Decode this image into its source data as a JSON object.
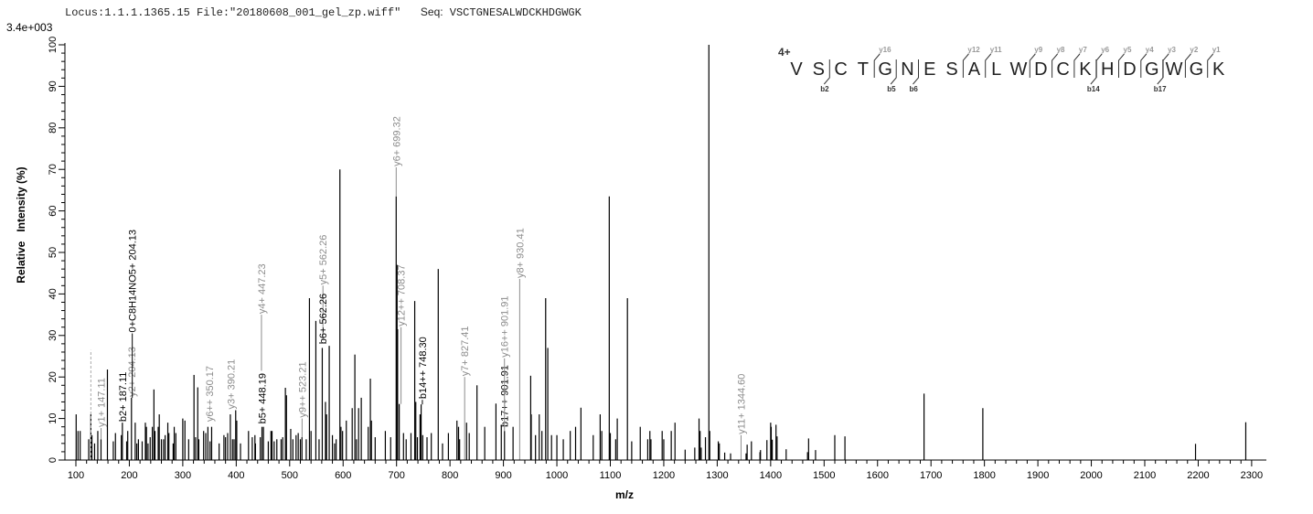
{
  "header": {
    "locus": "Locus:1.1.1.1365.15",
    "file": "File:\"20180608_001_gel_zp.wiff\"",
    "seq_label": "Seq:",
    "seq_value": "VSCTGNESALWDCKHDGWGK"
  },
  "chart_data": {
    "type": "bar",
    "subtype": "mass-spectrum",
    "base_peak_intensity": "3.4e+003",
    "xlabel": "m/z",
    "ylabel": "Relative   Intensity (%)",
    "xlim": [
      100,
      2320
    ],
    "ylim": [
      0,
      100
    ],
    "x_ticks": [
      "100",
      "200",
      "300",
      "400",
      "500",
      "600",
      "700",
      "800",
      "900",
      "1000",
      "1100",
      "1200",
      "1300",
      "1400",
      "1500",
      "1600",
      "1700",
      "1800",
      "1900",
      "2000",
      "2100",
      "2200",
      "2300"
    ],
    "y_ticks": [
      "0",
      "10",
      "20",
      "30",
      "40",
      "50",
      "60",
      "70",
      "80",
      "90",
      "100"
    ],
    "grid": false,
    "colors": {
      "peak": "#000000",
      "annotation_y": "#8c8c8c",
      "annotation_b": "#000000"
    },
    "peaks": [
      [
        100.5,
        11
      ],
      [
        104,
        7
      ],
      [
        108,
        7
      ],
      [
        124,
        5
      ],
      [
        128,
        11
      ],
      [
        130,
        6
      ],
      [
        135,
        4
      ],
      [
        141,
        7
      ],
      [
        147,
        5
      ],
      [
        159,
        21.8
      ],
      [
        170,
        4.5
      ],
      [
        174,
        6.5
      ],
      [
        185,
        6
      ],
      [
        187,
        9
      ],
      [
        195,
        4.5
      ],
      [
        197,
        7
      ],
      [
        204,
        15
      ],
      [
        211,
        9
      ],
      [
        214,
        4
      ],
      [
        217,
        5
      ],
      [
        224,
        4.5
      ],
      [
        230,
        9
      ],
      [
        232,
        8
      ],
      [
        235,
        4
      ],
      [
        239,
        5.5
      ],
      [
        243,
        8
      ],
      [
        246,
        17
      ],
      [
        248,
        7
      ],
      [
        254,
        8
      ],
      [
        256,
        11
      ],
      [
        260,
        5
      ],
      [
        264,
        5
      ],
      [
        267,
        6
      ],
      [
        272,
        9
      ],
      [
        274,
        6.5
      ],
      [
        282,
        4
      ],
      [
        284,
        8
      ],
      [
        287,
        6.5
      ],
      [
        300,
        10
      ],
      [
        304,
        9.5
      ],
      [
        311,
        5
      ],
      [
        321,
        20.5
      ],
      [
        324,
        5.5
      ],
      [
        328,
        17.5
      ],
      [
        330,
        5
      ],
      [
        339,
        7
      ],
      [
        343,
        6.5
      ],
      [
        347,
        8
      ],
      [
        351,
        4.5
      ],
      [
        354,
        8
      ],
      [
        368,
        4
      ],
      [
        377,
        6
      ],
      [
        380,
        5.5
      ],
      [
        384,
        6.5
      ],
      [
        389,
        11
      ],
      [
        393,
        5
      ],
      [
        396,
        5
      ],
      [
        399,
        12
      ],
      [
        401,
        9.5
      ],
      [
        408,
        4
      ],
      [
        423,
        7
      ],
      [
        430,
        5.5
      ],
      [
        435,
        6
      ],
      [
        436,
        4
      ],
      [
        445,
        5.5
      ],
      [
        448.2,
        8
      ],
      [
        451,
        8
      ],
      [
        460,
        4.5
      ],
      [
        465,
        7
      ],
      [
        467,
        7
      ],
      [
        471,
        4.5
      ],
      [
        476,
        5
      ],
      [
        484,
        5
      ],
      [
        487,
        5.5
      ],
      [
        492,
        17.4
      ],
      [
        494,
        15.6
      ],
      [
        502,
        7.5
      ],
      [
        506,
        5
      ],
      [
        512,
        6
      ],
      [
        516,
        6.5
      ],
      [
        520,
        5
      ],
      [
        523,
        5.5
      ],
      [
        531,
        5
      ],
      [
        537,
        39
      ],
      [
        540,
        7
      ],
      [
        549,
        33.5
      ],
      [
        555,
        5
      ],
      [
        561,
        27
      ],
      [
        567,
        14
      ],
      [
        569,
        11
      ],
      [
        574,
        27.5
      ],
      [
        580,
        6
      ],
      [
        584,
        4
      ],
      [
        587,
        5
      ],
      [
        594,
        70
      ],
      [
        596,
        8
      ],
      [
        599,
        7
      ],
      [
        606,
        9.5
      ],
      [
        617,
        12.5
      ],
      [
        622,
        25.4
      ],
      [
        625,
        5
      ],
      [
        629,
        12.5
      ],
      [
        634,
        15
      ],
      [
        647,
        8
      ],
      [
        651,
        19.6
      ],
      [
        653,
        9.5
      ],
      [
        660,
        5.5
      ],
      [
        679,
        7
      ],
      [
        689,
        5.5
      ],
      [
        699.3,
        63.5
      ],
      [
        701,
        47
      ],
      [
        702,
        31.5
      ],
      [
        705,
        13.5
      ],
      [
        713,
        6.5
      ],
      [
        718,
        5
      ],
      [
        727,
        6.5
      ],
      [
        734,
        38.3
      ],
      [
        736,
        14
      ],
      [
        739,
        5.5
      ],
      [
        744,
        11
      ],
      [
        746,
        13.4
      ],
      [
        749,
        6
      ],
      [
        757,
        5.5
      ],
      [
        765,
        6.5
      ],
      [
        778,
        46
      ],
      [
        786,
        4
      ],
      [
        797,
        6.5
      ],
      [
        813,
        9.5
      ],
      [
        816,
        8
      ],
      [
        818,
        5
      ],
      [
        831,
        9
      ],
      [
        836,
        6.5
      ],
      [
        850.5,
        18
      ],
      [
        865,
        8
      ],
      [
        886,
        13.6
      ],
      [
        896,
        8.5
      ],
      [
        902,
        7
      ],
      [
        918,
        8
      ],
      [
        951,
        20.3
      ],
      [
        952,
        11
      ],
      [
        960,
        6
      ],
      [
        967,
        11
      ],
      [
        972,
        7
      ],
      [
        979,
        39
      ],
      [
        983,
        27
      ],
      [
        990,
        6
      ],
      [
        1000,
        6
      ],
      [
        1012,
        5
      ],
      [
        1025,
        7
      ],
      [
        1035,
        8
      ],
      [
        1045,
        12.6
      ],
      [
        1068,
        6
      ],
      [
        1081,
        11
      ],
      [
        1084,
        7
      ],
      [
        1098,
        63.5
      ],
      [
        1100,
        6.5
      ],
      [
        1110,
        5
      ],
      [
        1113,
        10
      ],
      [
        1132,
        39
      ],
      [
        1140,
        4.5
      ],
      [
        1156,
        8
      ],
      [
        1170,
        5
      ],
      [
        1174,
        7
      ],
      [
        1176,
        5
      ],
      [
        1197,
        7
      ],
      [
        1200,
        5
      ],
      [
        1214,
        7
      ],
      [
        1221,
        9
      ],
      [
        1240,
        2.5
      ],
      [
        1258,
        3
      ],
      [
        1266,
        10
      ],
      [
        1268,
        7
      ],
      [
        1270,
        3
      ],
      [
        1278,
        5.5
      ],
      [
        1284.4,
        100
      ],
      [
        1286,
        7
      ],
      [
        1302,
        4.5
      ],
      [
        1304,
        4
      ],
      [
        1314,
        1.8
      ],
      [
        1325,
        1.6
      ],
      [
        1354,
        1.6
      ],
      [
        1356,
        3.7
      ],
      [
        1364,
        4.5
      ],
      [
        1380,
        1.9
      ],
      [
        1381,
        2.4
      ],
      [
        1393,
        4.8
      ],
      [
        1400,
        9
      ],
      [
        1401,
        8
      ],
      [
        1403,
        4.9
      ],
      [
        1410,
        8.5
      ],
      [
        1412,
        5.7
      ],
      [
        1429,
        2.6
      ],
      [
        1469,
        1.9
      ],
      [
        1471,
        5.2
      ],
      [
        1484,
        2.4
      ],
      [
        1520,
        6
      ],
      [
        1539,
        5.7
      ],
      [
        1687,
        16
      ],
      [
        1797,
        12.5
      ],
      [
        2195,
        3.9
      ],
      [
        2289,
        9.1
      ]
    ],
    "annotations": [
      {
        "label": "y1+ 147.11",
        "mz": 147.11,
        "ion": "y",
        "peak": 5
      },
      {
        "label": "b2+ 187.11",
        "mz": 187.11,
        "ion": "b",
        "peak": 9
      },
      {
        "label": "y2+ 204.13",
        "mz": 204.13,
        "ion": "y",
        "peak": 15
      },
      {
        "label": "0+C8H14NO5+ 204.13",
        "mz": 205.5,
        "ion": "b",
        "peak": 15
      },
      {
        "label": "y6++ 350.17",
        "mz": 350.17,
        "ion": "y",
        "peak": 8
      },
      {
        "label": "y3+ 390.21",
        "mz": 390.21,
        "ion": "y",
        "peak": 11
      },
      {
        "label": "y4+ 447.23",
        "mz": 447.23,
        "ion": "y",
        "peak": 8
      },
      {
        "label": "b5+ 448.19",
        "mz": 448.19,
        "ion": "b",
        "peak": 8
      },
      {
        "label": "y9++ 523.21",
        "mz": 523.21,
        "ion": "y",
        "peak": 5.5
      },
      {
        "label": "y5+ 562.26",
        "mz": 562.26,
        "ion": "y",
        "peak": 27
      },
      {
        "label": "b6+ 562.26",
        "mz": 562.26,
        "ion": "b",
        "peak": 27
      },
      {
        "label": "y6+ 699.32",
        "mz": 699.32,
        "ion": "y",
        "peak": 63.5
      },
      {
        "label": "y12++ 708.37",
        "mz": 708.37,
        "ion": "y",
        "peak": 13.5
      },
      {
        "label": "b14++ 748.30",
        "mz": 748.3,
        "ion": "b",
        "peak": 13.4
      },
      {
        "label": "y7+ 827.41",
        "mz": 827.41,
        "ion": "y",
        "peak": 0
      },
      {
        "label": "b17++ 901.91",
        "mz": 901.91,
        "ion": "b",
        "peak": 7
      },
      {
        "label": "y16++ 901.91",
        "mz": 901.91,
        "ion": "y",
        "peak": 7
      },
      {
        "label": "y8+ 930.41",
        "mz": 930.41,
        "ion": "y",
        "peak": 0
      },
      {
        "label": "y11+ 1344.60",
        "mz": 1344.6,
        "ion": "y",
        "peak": 0
      }
    ],
    "reference_marker": {
      "mz": 128,
      "intensity": 26.5,
      "style": "dashed"
    }
  },
  "peptide": {
    "charge": "4+",
    "residues": [
      "V",
      "S",
      "C",
      "T",
      "G",
      "N",
      "E",
      "S",
      "A",
      "L",
      "W",
      "D",
      "C",
      "K",
      "H",
      "D",
      "G",
      "W",
      "G",
      "K"
    ],
    "y_ions": [
      {
        "label": "y16",
        "before": 4
      },
      {
        "label": "y12",
        "before": 8
      },
      {
        "label": "y11",
        "before": 9
      },
      {
        "label": "y9",
        "before": 11
      },
      {
        "label": "y8",
        "before": 12
      },
      {
        "label": "y7",
        "before": 13
      },
      {
        "label": "y6",
        "before": 14
      },
      {
        "label": "y5",
        "before": 15
      },
      {
        "label": "y4",
        "before": 16
      },
      {
        "label": "y3",
        "before": 17
      },
      {
        "label": "y2",
        "before": 18
      },
      {
        "label": "y1",
        "before": 19
      }
    ],
    "b_ions": [
      {
        "label": "b2",
        "after": 1
      },
      {
        "label": "b5",
        "after": 4
      },
      {
        "label": "b6",
        "after": 5
      },
      {
        "label": "b14",
        "after": 13
      },
      {
        "label": "b17",
        "after": 16
      }
    ]
  }
}
